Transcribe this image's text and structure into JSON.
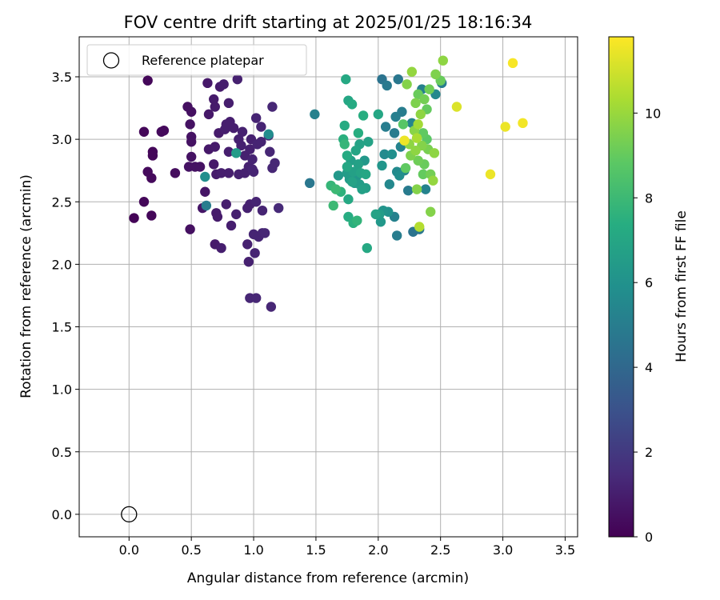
{
  "chart_data": {
    "type": "scatter",
    "title": "FOV centre drift starting at 2025/01/25 18:16:34",
    "xlabel": "Angular distance from reference (arcmin)",
    "ylabel": "Rotation from reference (arcmin)",
    "xlim": [
      -0.4,
      3.6
    ],
    "ylim": [
      -0.18,
      3.82
    ],
    "xticks": [
      "0.0",
      "0.5",
      "1.0",
      "1.5",
      "2.0",
      "2.5",
      "3.0",
      "3.5"
    ],
    "yticks": [
      "0.0",
      "0.5",
      "1.0",
      "1.5",
      "2.0",
      "2.5",
      "3.0",
      "3.5"
    ],
    "grid": true,
    "legend": {
      "position": "top-left",
      "entries": [
        "Reference platepar"
      ]
    },
    "reference_point": {
      "x": 0.0,
      "y": 0.0,
      "label": "Reference platepar"
    },
    "colorbar": {
      "label": "Hours from first FF file",
      "colormap": "viridis",
      "range": [
        0,
        11.8
      ],
      "ticks": [
        "0",
        "2",
        "4",
        "6",
        "8",
        "10"
      ]
    },
    "points": [
      {
        "x": 0.15,
        "y": 3.47,
        "t": 0.2
      },
      {
        "x": 0.12,
        "y": 3.06,
        "t": 0.2
      },
      {
        "x": 0.26,
        "y": 3.06,
        "t": 0.3
      },
      {
        "x": 0.28,
        "y": 3.07,
        "t": 0.3
      },
      {
        "x": 0.19,
        "y": 2.9,
        "t": 0.2
      },
      {
        "x": 0.19,
        "y": 2.87,
        "t": 0.2
      },
      {
        "x": 0.15,
        "y": 2.74,
        "t": 0.3
      },
      {
        "x": 0.18,
        "y": 2.69,
        "t": 0.3
      },
      {
        "x": 0.12,
        "y": 2.5,
        "t": 0.2
      },
      {
        "x": 0.04,
        "y": 2.37,
        "t": 0.1
      },
      {
        "x": 0.18,
        "y": 2.39,
        "t": 0.2
      },
      {
        "x": 0.37,
        "y": 2.73,
        "t": 0.4
      },
      {
        "x": 0.49,
        "y": 2.28,
        "t": 0.5
      },
      {
        "x": 0.47,
        "y": 3.26,
        "t": 0.5
      },
      {
        "x": 0.5,
        "y": 3.22,
        "t": 0.5
      },
      {
        "x": 0.49,
        "y": 3.12,
        "t": 0.6
      },
      {
        "x": 0.5,
        "y": 3.02,
        "t": 0.6
      },
      {
        "x": 0.5,
        "y": 2.98,
        "t": 0.6
      },
      {
        "x": 0.5,
        "y": 2.86,
        "t": 0.6
      },
      {
        "x": 0.48,
        "y": 2.78,
        "t": 0.6
      },
      {
        "x": 0.53,
        "y": 2.78,
        "t": 0.6
      },
      {
        "x": 0.57,
        "y": 2.78,
        "t": 0.6
      },
      {
        "x": 0.59,
        "y": 2.45,
        "t": 0.7
      },
      {
        "x": 0.61,
        "y": 2.58,
        "t": 0.7
      },
      {
        "x": 0.63,
        "y": 3.45,
        "t": 0.8
      },
      {
        "x": 0.64,
        "y": 3.2,
        "t": 0.8
      },
      {
        "x": 0.64,
        "y": 2.92,
        "t": 0.8
      },
      {
        "x": 0.68,
        "y": 2.8,
        "t": 0.8
      },
      {
        "x": 0.68,
        "y": 3.32,
        "t": 0.9
      },
      {
        "x": 0.69,
        "y": 3.26,
        "t": 0.9
      },
      {
        "x": 0.69,
        "y": 2.94,
        "t": 0.9
      },
      {
        "x": 0.7,
        "y": 2.72,
        "t": 0.9
      },
      {
        "x": 0.69,
        "y": 2.16,
        "t": 0.9
      },
      {
        "x": 0.7,
        "y": 2.41,
        "t": 0.9
      },
      {
        "x": 0.71,
        "y": 2.38,
        "t": 0.9
      },
      {
        "x": 0.72,
        "y": 3.05,
        "t": 0.9
      },
      {
        "x": 0.73,
        "y": 3.42,
        "t": 0.9
      },
      {
        "x": 0.74,
        "y": 2.73,
        "t": 1.0
      },
      {
        "x": 0.74,
        "y": 2.13,
        "t": 1.0
      },
      {
        "x": 0.76,
        "y": 3.44,
        "t": 1.0
      },
      {
        "x": 0.77,
        "y": 3.08,
        "t": 1.0
      },
      {
        "x": 0.78,
        "y": 3.12,
        "t": 1.0
      },
      {
        "x": 0.78,
        "y": 2.48,
        "t": 1.0
      },
      {
        "x": 0.8,
        "y": 3.29,
        "t": 1.0
      },
      {
        "x": 0.8,
        "y": 2.9,
        "t": 1.0
      },
      {
        "x": 0.8,
        "y": 2.73,
        "t": 1.0
      },
      {
        "x": 0.81,
        "y": 3.14,
        "t": 1.0
      },
      {
        "x": 0.82,
        "y": 2.31,
        "t": 1.0
      },
      {
        "x": 0.84,
        "y": 3.09,
        "t": 1.0
      },
      {
        "x": 0.86,
        "y": 2.4,
        "t": 1.1
      },
      {
        "x": 0.87,
        "y": 3.48,
        "t": 1.1
      },
      {
        "x": 0.88,
        "y": 3.0,
        "t": 1.1
      },
      {
        "x": 0.88,
        "y": 2.72,
        "t": 1.1
      },
      {
        "x": 0.9,
        "y": 2.95,
        "t": 1.1
      },
      {
        "x": 0.91,
        "y": 3.06,
        "t": 1.1
      },
      {
        "x": 0.93,
        "y": 2.73,
        "t": 1.1
      },
      {
        "x": 0.93,
        "y": 2.87,
        "t": 1.1
      },
      {
        "x": 0.95,
        "y": 2.16,
        "t": 1.1
      },
      {
        "x": 0.95,
        "y": 2.45,
        "t": 1.1
      },
      {
        "x": 0.96,
        "y": 2.02,
        "t": 1.1
      },
      {
        "x": 0.96,
        "y": 2.78,
        "t": 1.1
      },
      {
        "x": 0.97,
        "y": 2.48,
        "t": 1.1
      },
      {
        "x": 0.97,
        "y": 2.92,
        "t": 1.1
      },
      {
        "x": 0.98,
        "y": 3.0,
        "t": 1.1
      },
      {
        "x": 0.99,
        "y": 2.84,
        "t": 1.2
      },
      {
        "x": 0.99,
        "y": 2.76,
        "t": 1.2
      },
      {
        "x": 1.0,
        "y": 2.24,
        "t": 1.2
      },
      {
        "x": 1.0,
        "y": 2.74,
        "t": 1.2
      },
      {
        "x": 1.01,
        "y": 2.09,
        "t": 1.2
      },
      {
        "x": 1.02,
        "y": 3.17,
        "t": 1.2
      },
      {
        "x": 1.02,
        "y": 2.5,
        "t": 1.2
      },
      {
        "x": 1.03,
        "y": 2.96,
        "t": 1.2
      },
      {
        "x": 1.04,
        "y": 2.22,
        "t": 1.2
      },
      {
        "x": 1.06,
        "y": 3.1,
        "t": 1.2
      },
      {
        "x": 1.06,
        "y": 2.98,
        "t": 1.2
      },
      {
        "x": 1.07,
        "y": 2.25,
        "t": 1.2
      },
      {
        "x": 1.07,
        "y": 2.43,
        "t": 1.2
      },
      {
        "x": 1.09,
        "y": 2.25,
        "t": 1.3
      },
      {
        "x": 0.97,
        "y": 1.73,
        "t": 1.3
      },
      {
        "x": 1.02,
        "y": 1.73,
        "t": 1.3
      },
      {
        "x": 1.14,
        "y": 1.66,
        "t": 1.3
      },
      {
        "x": 1.12,
        "y": 3.03,
        "t": 1.3
      },
      {
        "x": 1.13,
        "y": 2.9,
        "t": 1.3
      },
      {
        "x": 1.15,
        "y": 3.26,
        "t": 1.3
      },
      {
        "x": 1.15,
        "y": 2.77,
        "t": 1.3
      },
      {
        "x": 1.17,
        "y": 2.81,
        "t": 1.3
      },
      {
        "x": 1.2,
        "y": 2.45,
        "t": 1.4
      },
      {
        "x": 0.61,
        "y": 2.7,
        "t": 5.8
      },
      {
        "x": 0.62,
        "y": 2.47,
        "t": 5.0
      },
      {
        "x": 0.86,
        "y": 2.89,
        "t": 6.5
      },
      {
        "x": 1.12,
        "y": 3.04,
        "t": 5.7
      },
      {
        "x": 1.45,
        "y": 2.65,
        "t": 4.7
      },
      {
        "x": 1.49,
        "y": 3.2,
        "t": 5.2
      },
      {
        "x": 1.62,
        "y": 2.63,
        "t": 7.8
      },
      {
        "x": 1.64,
        "y": 2.47,
        "t": 8.0
      },
      {
        "x": 1.66,
        "y": 2.6,
        "t": 8.0
      },
      {
        "x": 1.68,
        "y": 2.71,
        "t": 6.3
      },
      {
        "x": 1.7,
        "y": 2.58,
        "t": 7.6
      },
      {
        "x": 1.72,
        "y": 3.0,
        "t": 7.5
      },
      {
        "x": 1.73,
        "y": 3.11,
        "t": 7.2
      },
      {
        "x": 1.73,
        "y": 2.96,
        "t": 7.8
      },
      {
        "x": 1.74,
        "y": 3.48,
        "t": 7.1
      },
      {
        "x": 1.75,
        "y": 2.87,
        "t": 7.2
      },
      {
        "x": 1.75,
        "y": 2.78,
        "t": 7.0
      },
      {
        "x": 1.75,
        "y": 2.73,
        "t": 6.5
      },
      {
        "x": 1.76,
        "y": 2.38,
        "t": 7.3
      },
      {
        "x": 1.76,
        "y": 2.52,
        "t": 7.1
      },
      {
        "x": 1.76,
        "y": 3.31,
        "t": 7.0
      },
      {
        "x": 1.77,
        "y": 2.68,
        "t": 6.4
      },
      {
        "x": 1.78,
        "y": 2.83,
        "t": 6.6
      },
      {
        "x": 1.79,
        "y": 2.66,
        "t": 6.8
      },
      {
        "x": 1.79,
        "y": 3.28,
        "t": 7.2
      },
      {
        "x": 1.8,
        "y": 2.74,
        "t": 6.7
      },
      {
        "x": 1.8,
        "y": 2.33,
        "t": 7.5
      },
      {
        "x": 1.81,
        "y": 2.65,
        "t": 6.4
      },
      {
        "x": 1.82,
        "y": 2.91,
        "t": 6.9
      },
      {
        "x": 1.83,
        "y": 2.35,
        "t": 7.7
      },
      {
        "x": 1.83,
        "y": 2.71,
        "t": 6.2
      },
      {
        "x": 1.84,
        "y": 2.8,
        "t": 6.7
      },
      {
        "x": 1.84,
        "y": 3.05,
        "t": 7.4
      },
      {
        "x": 1.85,
        "y": 2.96,
        "t": 6.8
      },
      {
        "x": 1.85,
        "y": 2.64,
        "t": 6.5
      },
      {
        "x": 1.86,
        "y": 2.73,
        "t": 6.9
      },
      {
        "x": 1.87,
        "y": 2.6,
        "t": 6.7
      },
      {
        "x": 1.88,
        "y": 3.19,
        "t": 7.4
      },
      {
        "x": 1.89,
        "y": 2.83,
        "t": 6.3
      },
      {
        "x": 1.9,
        "y": 2.72,
        "t": 7.0
      },
      {
        "x": 1.9,
        "y": 2.61,
        "t": 6.6
      },
      {
        "x": 1.91,
        "y": 2.13,
        "t": 7.1
      },
      {
        "x": 1.92,
        "y": 2.98,
        "t": 6.8
      },
      {
        "x": 1.98,
        "y": 2.4,
        "t": 6.8
      },
      {
        "x": 2.0,
        "y": 3.2,
        "t": 7.0
      },
      {
        "x": 2.01,
        "y": 2.4,
        "t": 6.5
      },
      {
        "x": 2.02,
        "y": 2.34,
        "t": 6.3
      },
      {
        "x": 2.03,
        "y": 2.79,
        "t": 6.2
      },
      {
        "x": 2.03,
        "y": 3.48,
        "t": 4.5
      },
      {
        "x": 2.04,
        "y": 2.43,
        "t": 6.1
      },
      {
        "x": 2.05,
        "y": 2.88,
        "t": 5.6
      },
      {
        "x": 2.06,
        "y": 3.1,
        "t": 5.0
      },
      {
        "x": 2.07,
        "y": 3.43,
        "t": 4.8
      },
      {
        "x": 2.08,
        "y": 2.42,
        "t": 6.0
      },
      {
        "x": 2.09,
        "y": 2.64,
        "t": 5.5
      },
      {
        "x": 2.11,
        "y": 2.88,
        "t": 5.9
      },
      {
        "x": 2.13,
        "y": 2.38,
        "t": 5.2
      },
      {
        "x": 2.13,
        "y": 3.05,
        "t": 4.9
      },
      {
        "x": 2.14,
        "y": 3.18,
        "t": 5.1
      },
      {
        "x": 2.15,
        "y": 2.74,
        "t": 5.6
      },
      {
        "x": 2.15,
        "y": 2.23,
        "t": 5.0
      },
      {
        "x": 2.16,
        "y": 3.48,
        "t": 4.7
      },
      {
        "x": 2.17,
        "y": 2.71,
        "t": 5.8
      },
      {
        "x": 2.18,
        "y": 2.94,
        "t": 5.3
      },
      {
        "x": 2.19,
        "y": 3.22,
        "t": 5.0
      },
      {
        "x": 2.2,
        "y": 3.12,
        "t": 8.7
      },
      {
        "x": 2.21,
        "y": 2.75,
        "t": 5.4
      },
      {
        "x": 2.21,
        "y": 2.99,
        "t": 11.5
      },
      {
        "x": 2.22,
        "y": 2.77,
        "t": 8.9
      },
      {
        "x": 2.23,
        "y": 3.44,
        "t": 9.6
      },
      {
        "x": 2.24,
        "y": 2.59,
        "t": 4.9
      },
      {
        "x": 2.25,
        "y": 2.96,
        "t": 9.8
      },
      {
        "x": 2.26,
        "y": 2.87,
        "t": 9.5
      },
      {
        "x": 2.27,
        "y": 3.54,
        "t": 9.9
      },
      {
        "x": 2.27,
        "y": 3.13,
        "t": 5.4
      },
      {
        "x": 2.28,
        "y": 2.26,
        "t": 4.5
      },
      {
        "x": 2.29,
        "y": 3.07,
        "t": 9.7
      },
      {
        "x": 2.3,
        "y": 2.91,
        "t": 9.8
      },
      {
        "x": 2.3,
        "y": 3.29,
        "t": 9.5
      },
      {
        "x": 2.31,
        "y": 2.6,
        "t": 9.6
      },
      {
        "x": 2.31,
        "y": 3.01,
        "t": 10.3
      },
      {
        "x": 2.32,
        "y": 2.83,
        "t": 9.2
      },
      {
        "x": 2.32,
        "y": 3.12,
        "t": 10.2
      },
      {
        "x": 2.32,
        "y": 3.36,
        "t": 9.1
      },
      {
        "x": 2.33,
        "y": 2.3,
        "t": 10.5
      },
      {
        "x": 2.33,
        "y": 2.28,
        "t": 4.7
      },
      {
        "x": 2.34,
        "y": 3.2,
        "t": 9.8
      },
      {
        "x": 2.35,
        "y": 2.95,
        "t": 9.6
      },
      {
        "x": 2.35,
        "y": 3.4,
        "t": 5.2
      },
      {
        "x": 2.36,
        "y": 2.72,
        "t": 9.0
      },
      {
        "x": 2.36,
        "y": 3.05,
        "t": 8.9
      },
      {
        "x": 2.37,
        "y": 2.8,
        "t": 9.1
      },
      {
        "x": 2.37,
        "y": 3.32,
        "t": 9.3
      },
      {
        "x": 2.38,
        "y": 2.6,
        "t": 5.3
      },
      {
        "x": 2.39,
        "y": 3.24,
        "t": 9.0
      },
      {
        "x": 2.39,
        "y": 3.0,
        "t": 8.8
      },
      {
        "x": 2.4,
        "y": 2.92,
        "t": 9.4
      },
      {
        "x": 2.41,
        "y": 3.4,
        "t": 9.2
      },
      {
        "x": 2.42,
        "y": 2.42,
        "t": 9.6
      },
      {
        "x": 2.42,
        "y": 2.72,
        "t": 9.3
      },
      {
        "x": 2.44,
        "y": 2.67,
        "t": 9.9
      },
      {
        "x": 2.45,
        "y": 2.89,
        "t": 9.8
      },
      {
        "x": 2.46,
        "y": 3.52,
        "t": 9.5
      },
      {
        "x": 2.46,
        "y": 3.36,
        "t": 5.5
      },
      {
        "x": 2.5,
        "y": 3.47,
        "t": 9.1
      },
      {
        "x": 2.51,
        "y": 3.45,
        "t": 5.0
      },
      {
        "x": 2.52,
        "y": 3.63,
        "t": 9.8
      },
      {
        "x": 2.63,
        "y": 3.26,
        "t": 11.2
      },
      {
        "x": 2.9,
        "y": 2.72,
        "t": 11.5
      },
      {
        "x": 3.02,
        "y": 3.1,
        "t": 11.5
      },
      {
        "x": 3.08,
        "y": 3.61,
        "t": 11.7
      },
      {
        "x": 3.16,
        "y": 3.13,
        "t": 11.6
      }
    ]
  }
}
